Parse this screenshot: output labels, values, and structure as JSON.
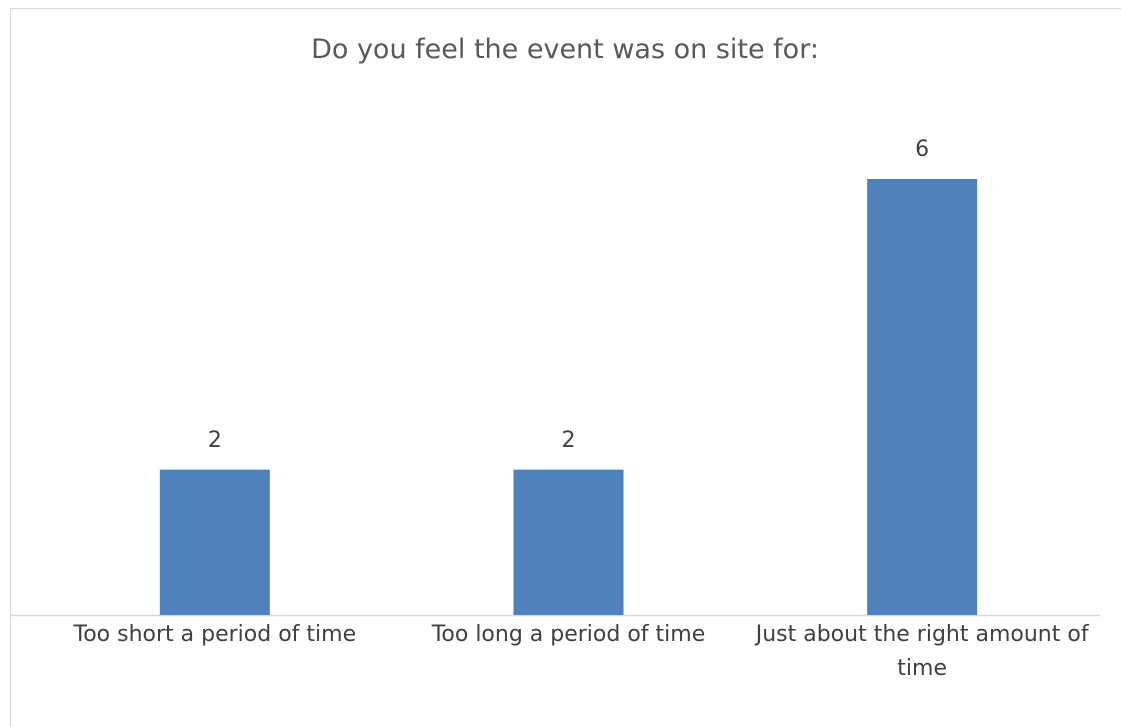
{
  "chart_data": {
    "type": "bar",
    "title": "Do you feel the event was on site for:",
    "categories": [
      "Too short a period of time",
      "Too long a period of time",
      "Just about the right amount of time"
    ],
    "values": [
      2,
      2,
      6
    ],
    "color": "#4f81bd"
  }
}
